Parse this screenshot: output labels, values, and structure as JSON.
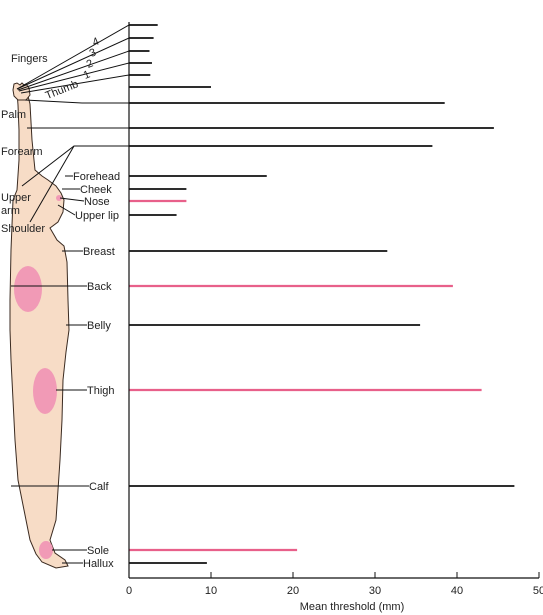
{
  "chart_data": {
    "type": "bar",
    "orientation": "horizontal",
    "xlabel": "Mean threshold (mm)",
    "xlim": [
      0,
      50
    ],
    "xticks": [
      0,
      10,
      20,
      30,
      40,
      50
    ],
    "grid": false,
    "highlight_color": "#e8608a",
    "bar_color": "#111111",
    "categories": [
      "4",
      "3",
      "2",
      "1",
      "Thumb",
      "Palm",
      "Forearm",
      "Upper arm",
      "Shoulder",
      "Forehead",
      "Cheek",
      "Nose",
      "Upper lip",
      "Breast",
      "Back",
      "Belly",
      "Thigh",
      "Calf",
      "Sole",
      "Hallux"
    ],
    "values": [
      3.5,
      3,
      2.5,
      2.8,
      2.6,
      10,
      38.5,
      44.5,
      37,
      16.8,
      7,
      7,
      5.8,
      31.5,
      39.5,
      35.5,
      43,
      47,
      20.5,
      9.5
    ],
    "highlighted": [
      false,
      false,
      false,
      false,
      false,
      false,
      false,
      false,
      false,
      false,
      false,
      true,
      false,
      false,
      true,
      false,
      true,
      false,
      true,
      false
    ]
  },
  "labels": {
    "fingers": "Fingers",
    "palm": "Palm",
    "forearm": "Forearm",
    "upper_arm_1": "Upper",
    "upper_arm_2": "arm",
    "shoulder": "Shoulder"
  }
}
